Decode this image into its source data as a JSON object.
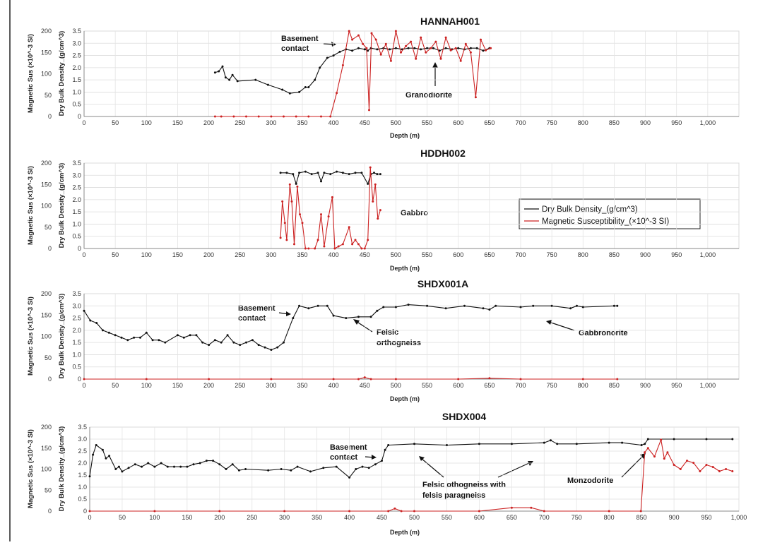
{
  "legend": {
    "items": [
      {
        "label": "Dry Bulk Density_(g/cm^3)",
        "color": "#111111"
      },
      {
        "label": "Magnetic Susceptibility_(×10^-3 SI)",
        "color": "#cc2222"
      }
    ]
  },
  "chart_data": [
    {
      "type": "line",
      "title": "HANNAH001",
      "xlabel": "Depth (m)",
      "ylabel_left": "Magnetic Sus (×10^-3 SI)",
      "ylabel_right": "Dry Bulk Density_(g/cm^3)",
      "xlim": [
        0,
        1050
      ],
      "ylim_sus": [
        0,
        200
      ],
      "ylim_density": [
        0,
        3.5
      ],
      "xticks": [
        "0",
        "50",
        "100",
        "150",
        "200",
        "250",
        "300",
        "350",
        "400",
        "450",
        "500",
        "550",
        "600",
        "650",
        "700",
        "750",
        "800",
        "850",
        "900",
        "950",
        "1,000"
      ],
      "yticks_sus": [
        "0",
        "50",
        "100",
        "150",
        "200"
      ],
      "yticks_density": [
        "0",
        "0.5",
        "1.0",
        "1.5",
        "2.0",
        "2.5",
        "3.0",
        "3.5"
      ],
      "series": [
        {
          "name": "Dry Bulk Density_(g/cm^3)",
          "x": [
            210,
            216,
            222,
            227,
            233,
            238,
            246,
            275,
            295,
            318,
            330,
            345,
            355,
            360,
            370,
            378,
            390,
            400,
            410,
            420,
            430,
            440,
            450,
            455,
            460,
            470,
            480,
            490,
            500,
            510,
            520,
            530,
            540,
            550,
            560,
            570,
            580,
            590,
            600,
            610,
            620,
            630,
            640,
            650
          ],
          "values": [
            1.8,
            1.85,
            2.05,
            1.6,
            1.5,
            1.7,
            1.45,
            1.5,
            1.3,
            1.1,
            0.95,
            1.0,
            1.2,
            1.2,
            1.5,
            2.0,
            2.4,
            2.5,
            2.65,
            2.75,
            2.7,
            2.8,
            2.75,
            2.7,
            2.8,
            2.75,
            2.8,
            2.75,
            2.8,
            2.75,
            2.8,
            2.8,
            2.75,
            2.8,
            2.8,
            2.7,
            2.8,
            2.75,
            2.8,
            2.75,
            2.8,
            2.8,
            2.7,
            2.8
          ]
        },
        {
          "name": "Magnetic Susceptibility_(×10^-3 SI)",
          "x": [
            210,
            220,
            240,
            260,
            280,
            300,
            320,
            340,
            360,
            380,
            395,
            405,
            415,
            425,
            430,
            440,
            447,
            453,
            457,
            461,
            468,
            476,
            484,
            492,
            500,
            508,
            516,
            524,
            532,
            540,
            548,
            556,
            564,
            572,
            580,
            588,
            596,
            604,
            612,
            620,
            628,
            636,
            644,
            652
          ],
          "values": [
            0,
            0,
            0,
            0,
            0,
            0,
            0,
            0,
            0,
            0,
            0,
            55,
            120,
            200,
            180,
            190,
            170,
            160,
            15,
            195,
            180,
            145,
            170,
            130,
            200,
            150,
            165,
            175,
            135,
            185,
            150,
            160,
            175,
            135,
            185,
            155,
            160,
            130,
            170,
            150,
            45,
            180,
            155,
            160
          ]
        }
      ],
      "annotations": [
        "Basement contact",
        "Granodiorite"
      ]
    },
    {
      "type": "line",
      "title": "HDDH002",
      "xlabel": "Depth (m)",
      "ylabel_left": "Magnetic Sus (×10^-3 SI)",
      "ylabel_right": "Dry Bulk Density_(g/cm^3)",
      "xlim": [
        0,
        1050
      ],
      "ylim_sus": [
        0,
        200
      ],
      "ylim_density": [
        0,
        3.5
      ],
      "xticks": [
        "0",
        "50",
        "100",
        "150",
        "200",
        "250",
        "300",
        "350",
        "400",
        "450",
        "500",
        "550",
        "600",
        "650",
        "700",
        "750",
        "800",
        "850",
        "900",
        "950",
        "1,000"
      ],
      "yticks_sus": [
        "0",
        "50",
        "100",
        "150",
        "200"
      ],
      "yticks_density": [
        "0",
        "0.5",
        "1.0",
        "1.5",
        "2.0",
        "2.5",
        "3.0",
        "3.5"
      ],
      "series": [
        {
          "name": "Dry Bulk Density_(g/cm^3)",
          "x": [
            315,
            325,
            335,
            340,
            345,
            355,
            365,
            375,
            380,
            385,
            395,
            405,
            415,
            425,
            435,
            445,
            455,
            460,
            465,
            470,
            475
          ],
          "values": [
            3.1,
            3.1,
            3.05,
            2.65,
            3.1,
            3.15,
            3.05,
            3.1,
            2.75,
            3.1,
            3.05,
            3.15,
            3.1,
            3.05,
            3.1,
            3.1,
            2.65,
            3.05,
            3.1,
            3.05,
            3.05
          ]
        },
        {
          "name": "Magnetic Susceptibility_(×10^-3 SI)",
          "x": [
            315,
            318,
            322,
            325,
            330,
            333,
            337,
            342,
            346,
            350,
            355,
            360,
            370,
            375,
            380,
            385,
            392,
            398,
            402,
            408,
            415,
            425,
            430,
            435,
            440,
            445,
            450,
            455,
            459,
            463,
            467,
            471,
            475
          ],
          "values": [
            25,
            110,
            60,
            20,
            150,
            110,
            10,
            145,
            80,
            60,
            0,
            0,
            0,
            20,
            80,
            5,
            75,
            120,
            0,
            5,
            10,
            50,
            10,
            20,
            10,
            0,
            0,
            20,
            190,
            110,
            150,
            70,
            90
          ]
        }
      ],
      "annotations": [
        "Gabbro"
      ]
    },
    {
      "type": "line",
      "title": "SHDX001A",
      "xlabel": "Depth (m)",
      "ylabel_left": "Magnetic Sus (×10^-3 SI)",
      "ylabel_right": "Dry Bulk Density_(g/cm^3)",
      "xlim": [
        0,
        1050
      ],
      "ylim_sus": [
        0,
        200
      ],
      "ylim_density": [
        0,
        3.5
      ],
      "xticks": [
        "0",
        "50",
        "100",
        "150",
        "200",
        "250",
        "300",
        "350",
        "400",
        "450",
        "500",
        "550",
        "600",
        "650",
        "700",
        "750",
        "800",
        "850",
        "900",
        "950",
        "1,000"
      ],
      "yticks_sus": [
        "0",
        "50",
        "100",
        "150",
        "200"
      ],
      "yticks_density": [
        "0",
        "0.5",
        "1.0",
        "1.5",
        "2.0",
        "2.5",
        "3.0",
        "3.5"
      ],
      "series": [
        {
          "name": "Dry Bulk Density_(g/cm^3)",
          "x": [
            0,
            10,
            20,
            30,
            40,
            50,
            60,
            70,
            80,
            90,
            100,
            110,
            120,
            130,
            150,
            160,
            170,
            180,
            190,
            200,
            210,
            220,
            230,
            240,
            250,
            260,
            270,
            280,
            290,
            300,
            310,
            320,
            335,
            345,
            360,
            375,
            390,
            400,
            420,
            440,
            460,
            470,
            480,
            500,
            520,
            550,
            580,
            610,
            640,
            650,
            660,
            700,
            720,
            750,
            780,
            790,
            800,
            850,
            855
          ],
          "values": [
            2.8,
            2.4,
            2.3,
            2.0,
            1.9,
            1.8,
            1.7,
            1.6,
            1.7,
            1.7,
            1.9,
            1.6,
            1.6,
            1.5,
            1.8,
            1.7,
            1.8,
            1.8,
            1.5,
            1.4,
            1.6,
            1.5,
            1.8,
            1.5,
            1.4,
            1.5,
            1.6,
            1.4,
            1.3,
            1.2,
            1.3,
            1.5,
            2.5,
            3.0,
            2.9,
            3.0,
            3.0,
            2.6,
            2.5,
            2.55,
            2.55,
            2.8,
            2.95,
            2.95,
            3.05,
            3.0,
            2.9,
            3.0,
            2.9,
            2.85,
            3.0,
            2.95,
            3.0,
            3.0,
            2.9,
            3.0,
            2.95,
            3.0,
            3.0
          ]
        },
        {
          "name": "Magnetic Susceptibility_(×10^-3 SI)",
          "x": [
            0,
            100,
            200,
            300,
            400,
            440,
            450,
            460,
            500,
            600,
            650,
            700,
            800,
            855
          ],
          "values": [
            0,
            0,
            0,
            0,
            0,
            0,
            4,
            0,
            0,
            0,
            2,
            0,
            0,
            0
          ]
        }
      ],
      "annotations": [
        "Basement contact",
        "Felsic orthogneiss",
        "Gabbronorite"
      ]
    },
    {
      "type": "line",
      "title": "SHDX004",
      "xlabel": "Depth (m)",
      "ylabel_left": "Magnetic Sus (×10^-3 SI)",
      "ylabel_right": "Dry Bulk Density_(g/cm^3)",
      "xlim": [
        0,
        1000
      ],
      "ylim_sus": [
        0,
        200
      ],
      "ylim_density": [
        0,
        3.5
      ],
      "xticks": [
        "0",
        "50",
        "100",
        "150",
        "200",
        "250",
        "300",
        "350",
        "400",
        "450",
        "500",
        "550",
        "600",
        "650",
        "700",
        "750",
        "800",
        "850",
        "900",
        "950",
        "1,000"
      ],
      "yticks_sus": [
        "0",
        "50",
        "100",
        "150",
        "200"
      ],
      "yticks_density": [
        "0",
        "0.5",
        "1.0",
        "1.5",
        "2.0",
        "2.5",
        "3.0",
        "3.5"
      ],
      "series": [
        {
          "name": "Dry Bulk Density_(g/cm^3)",
          "x": [
            0,
            5,
            10,
            20,
            25,
            30,
            40,
            45,
            50,
            60,
            70,
            80,
            90,
            100,
            110,
            120,
            130,
            140,
            150,
            160,
            170,
            180,
            190,
            200,
            210,
            220,
            230,
            240,
            275,
            295,
            310,
            320,
            340,
            360,
            380,
            400,
            410,
            420,
            430,
            440,
            450,
            455,
            460,
            500,
            550,
            600,
            650,
            700,
            710,
            720,
            750,
            800,
            820,
            850,
            855,
            860,
            900,
            950,
            990
          ],
          "values": [
            1.45,
            2.35,
            2.75,
            2.55,
            2.2,
            2.3,
            1.75,
            1.85,
            1.65,
            1.8,
            1.95,
            1.85,
            2.0,
            1.85,
            2.0,
            1.85,
            1.85,
            1.85,
            1.85,
            1.95,
            2.0,
            2.1,
            2.1,
            1.95,
            1.75,
            1.95,
            1.7,
            1.75,
            1.7,
            1.75,
            1.7,
            1.85,
            1.65,
            1.8,
            1.85,
            1.4,
            1.75,
            1.85,
            1.8,
            1.95,
            2.1,
            2.55,
            2.75,
            2.8,
            2.75,
            2.8,
            2.8,
            2.85,
            2.95,
            2.8,
            2.8,
            2.85,
            2.85,
            2.75,
            2.8,
            3.0,
            3.0,
            3.0,
            3.0
          ]
        },
        {
          "name": "Magnetic Susceptibility_(×10^-3 SI)",
          "x": [
            0,
            100,
            200,
            300,
            400,
            460,
            470,
            480,
            500,
            600,
            650,
            680,
            700,
            800,
            849,
            855,
            860,
            870,
            880,
            885,
            890,
            900,
            910,
            920,
            930,
            940,
            950,
            960,
            970,
            980,
            990
          ],
          "values": [
            0,
            0,
            0,
            0,
            0,
            0,
            6,
            0,
            0,
            0,
            8,
            8,
            0,
            0,
            0,
            140,
            150,
            130,
            170,
            125,
            140,
            110,
            100,
            120,
            115,
            95,
            110,
            105,
            95,
            100,
            95
          ]
        }
      ],
      "annotations": [
        "Basement contact",
        "Felsic othogneiss with felsis paragneiss",
        "Monzodorite"
      ]
    }
  ]
}
